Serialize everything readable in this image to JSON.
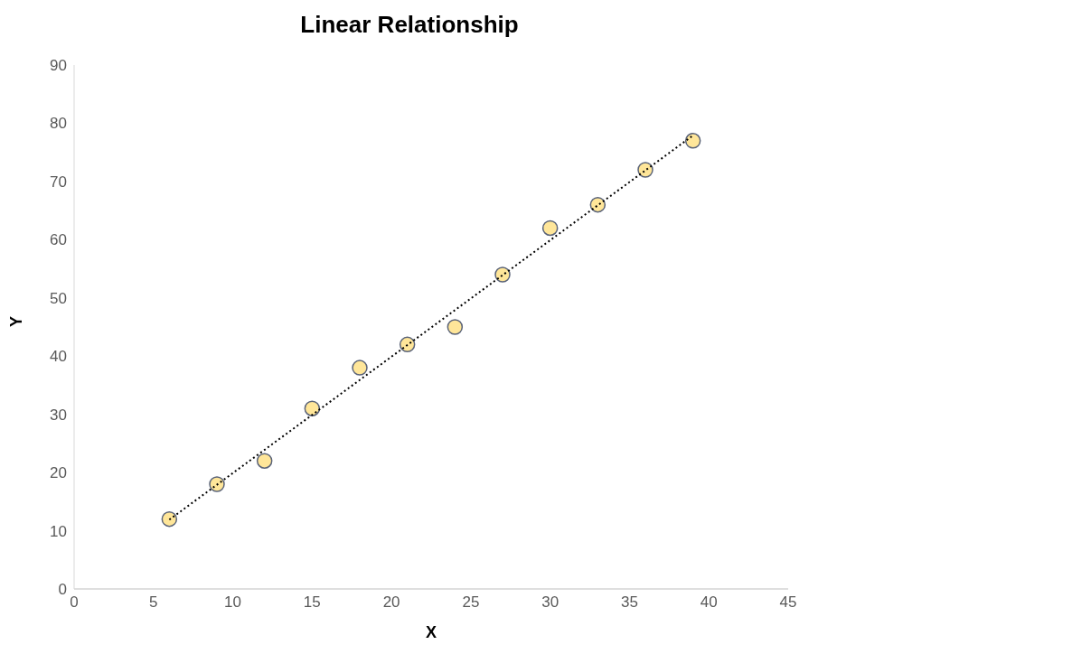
{
  "chart_data": {
    "type": "scatter",
    "title": "Linear Relationship",
    "xlabel": "X",
    "ylabel": "Y",
    "x": [
      6,
      9,
      12,
      15,
      18,
      21,
      24,
      27,
      30,
      33,
      36,
      39
    ],
    "series": [
      {
        "color": "#ffe699",
        "marker": "circle",
        "values": [
          12,
          18,
          22,
          31,
          38,
          42,
          45,
          54,
          62,
          66,
          72,
          77
        ]
      },
      {
        "type": "line",
        "color": "#000000",
        "line_style": "dotted",
        "marker": "none",
        "x": [
          6,
          39
        ],
        "values": [
          11.9,
          77.9
        ]
      }
    ],
    "xlim": [
      0,
      45
    ],
    "xticks": [
      0,
      5,
      10,
      15,
      20,
      25,
      30,
      35,
      40,
      45
    ],
    "ylim": [
      0,
      90
    ],
    "yticks": [
      0,
      10,
      20,
      30,
      40,
      50,
      60,
      70,
      80,
      90
    ],
    "grid": false
  }
}
